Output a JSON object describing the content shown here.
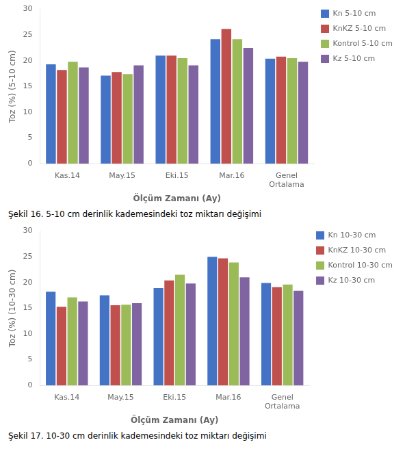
{
  "chart_data": [
    {
      "type": "bar",
      "categories": [
        "Kas.14",
        "May.15",
        "Eki.15",
        "Mar.16",
        "Genel\nOrtalama"
      ],
      "series": [
        {
          "name": "Kn 5-10 cm",
          "color": "#4472C4",
          "values": [
            19.3,
            17.1,
            21.0,
            24.2,
            20.4
          ]
        },
        {
          "name": "KnKZ 5-10 cm",
          "color": "#C0504D",
          "values": [
            18.2,
            17.8,
            21.0,
            26.2,
            20.8
          ]
        },
        {
          "name": "Kontrol 5-10 cm",
          "color": "#9BBB59",
          "values": [
            19.8,
            17.4,
            20.5,
            24.2,
            20.5
          ]
        },
        {
          "name": "Kz 5-10 cm",
          "color": "#8064A2",
          "values": [
            18.7,
            19.1,
            19.1,
            22.5,
            19.8
          ]
        }
      ],
      "ylabel": "Toz (%) (5-10 cm)",
      "xlabel": "Ölçüm Zamanı (Ay)",
      "ylim": [
        0,
        30
      ],
      "yticks": [
        0,
        5,
        10,
        15,
        20,
        25,
        30
      ],
      "grid": false,
      "legend": "right",
      "caption": "Şekil 16. 5-10 cm derinlik kademesindeki toz miktarı değişimi"
    },
    {
      "type": "bar",
      "categories": [
        "Kas.14",
        "May.15",
        "Eki.15",
        "Mar.16",
        "Genel\nOrtalama"
      ],
      "series": [
        {
          "name": "Kn 10-30 cm",
          "color": "#4472C4",
          "values": [
            18.2,
            17.5,
            18.9,
            25.0,
            19.9
          ]
        },
        {
          "name": "KnKZ 10-30 cm",
          "color": "#C0504D",
          "values": [
            15.3,
            15.6,
            20.4,
            24.7,
            19.1
          ]
        },
        {
          "name": "Kontrol 10-30 cm",
          "color": "#9BBB59",
          "values": [
            17.1,
            15.7,
            21.5,
            23.9,
            19.6
          ]
        },
        {
          "name": "Kz 10-30 cm",
          "color": "#8064A2",
          "values": [
            16.3,
            16.0,
            19.8,
            21.0,
            18.4
          ]
        }
      ],
      "ylabel": "Toz (%) (10-30 cm)",
      "xlabel": "Ölçüm Zamanı (Ay)",
      "ylim": [
        0,
        30
      ],
      "yticks": [
        0,
        5,
        10,
        15,
        20,
        25,
        30
      ],
      "grid": false,
      "legend": "right",
      "caption": "Şekil 17. 10-30 cm derinlik kademesindeki toz miktarı değişimi"
    }
  ]
}
